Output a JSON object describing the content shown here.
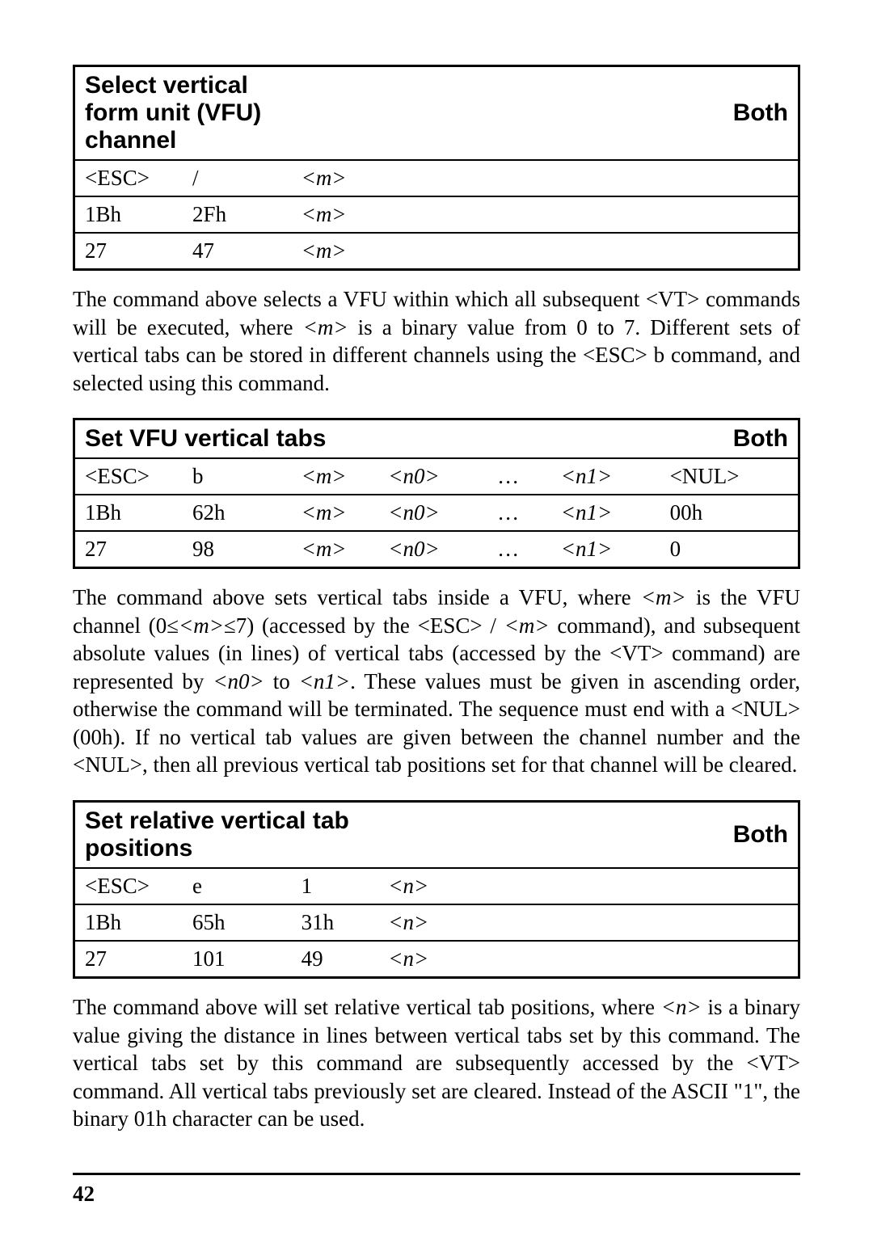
{
  "tables": {
    "t1": {
      "title": "Select vertical form unit (VFU) channel",
      "mode": "Both",
      "rows": [
        {
          "c0": "<ESC>",
          "c1": "/",
          "c2": "<m>"
        },
        {
          "c0": "1Bh",
          "c1": "2Fh",
          "c2": "<m>"
        },
        {
          "c0": "27",
          "c1": "47",
          "c2": "<m>"
        }
      ]
    },
    "t2": {
      "title": "Set VFU vertical tabs",
      "mode": "Both",
      "rows": [
        {
          "c0": "<ESC>",
          "c1": "b",
          "c2": "<m>",
          "c3": "<n0>",
          "c4": "…",
          "c5": "<n1>",
          "c6": "<NUL>"
        },
        {
          "c0": "1Bh",
          "c1": "62h",
          "c2": "<m>",
          "c3": "<n0>",
          "c4": "…",
          "c5": "<n1>",
          "c6": "00h"
        },
        {
          "c0": "27",
          "c1": "98",
          "c2": "<m>",
          "c3": "<n0>",
          "c4": "…",
          "c5": "<n1>",
          "c6": "0"
        }
      ]
    },
    "t3": {
      "title": "Set relative vertical tab positions",
      "mode": "Both",
      "rows": [
        {
          "c0": "<ESC>",
          "c1": "e",
          "c2": "1",
          "c3": "<n>"
        },
        {
          "c0": "1Bh",
          "c1": "65h",
          "c2": "31h",
          "c3": "<n>"
        },
        {
          "c0": "27",
          "c1": "101",
          "c2": "49",
          "c3": "<n>"
        }
      ]
    }
  },
  "paras": {
    "p1a": "The command above selects a VFU within which all subsequent <VT> commands will be executed, where ",
    "p1b": "<m>",
    "p1c": " is a binary value from 0 to 7. Different sets of vertical tabs can be stored in different channels using the <ESC> b command, and selected using this command.",
    "p2a": "The command above sets vertical tabs inside a VFU, where ",
    "p2b": "<m>",
    "p2c": " is the VFU channel (0≤",
    "p2d": "<m>",
    "p2e": "≤7) (accessed by the <ESC> / ",
    "p2f": "<m>",
    "p2g": " command), and subsequent absolute values (in lines) of vertical tabs (accessed by the <VT> command) are represented by ",
    "p2h": "<n0>",
    "p2i": " to ",
    "p2j": "<n1>",
    "p2k": ". These values must be given in ascending order, otherwise the command will be terminated. The sequence must end with a <NUL> (00h). If no vertical tab values are given between the channel number and the <NUL>, then all previous vertical tab positions set for that channel will be cleared.",
    "p3a": "The command above will set relative vertical tab positions, where ",
    "p3b": "<n>",
    "p3c": " is a binary value giving the distance in lines between vertical tabs set by this command. The vertical tabs set by this command are subsequently accessed by the <VT> command. All vertical tabs previously set are cleared. Instead of the ASCII \"1\", the binary 01h character can be used."
  },
  "page_number": "42"
}
